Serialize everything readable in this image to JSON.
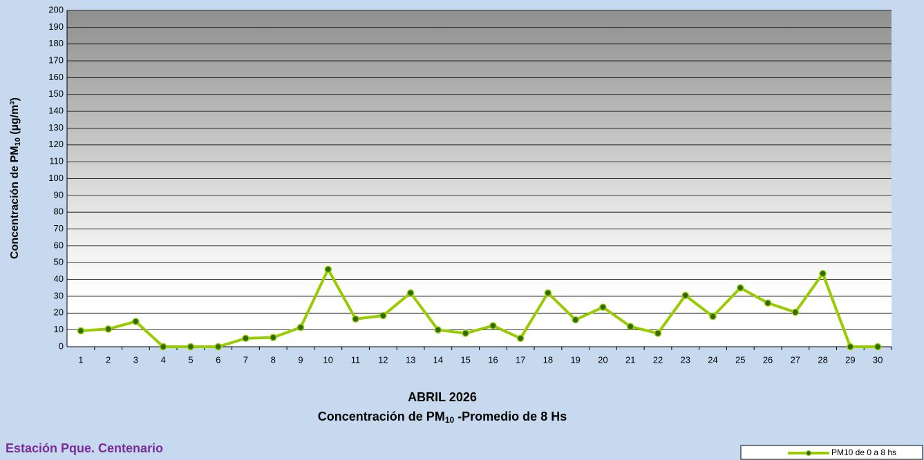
{
  "chart_data": {
    "type": "line",
    "title": "ABRIL 2026",
    "subtitle": {
      "text": "Concentración de PM",
      "sub": "10",
      "rest": " -Promedio de 8 Hs"
    },
    "y_label": {
      "text": "Concentración de PM",
      "sub": "10",
      "rest": " (µg/m³)"
    },
    "station": "Estación Pque. Centenario",
    "categories": [
      "1",
      "2",
      "3",
      "4",
      "5",
      "6",
      "7",
      "8",
      "9",
      "10",
      "11",
      "12",
      "13",
      "14",
      "15",
      "16",
      "17",
      "18",
      "19",
      "20",
      "21",
      "22",
      "23",
      "24",
      "25",
      "26",
      "27",
      "28",
      "29",
      "30"
    ],
    "series": [
      {
        "name": "PM10 de 0 a 8 hs",
        "color": "#99cc00",
        "marker_color": "#2e6b00",
        "values": [
          9.5,
          10.5,
          15,
          0,
          0,
          0,
          5,
          5.5,
          11.5,
          46,
          16.5,
          18.5,
          32,
          10,
          8,
          12.5,
          5,
          32,
          16,
          23.5,
          12,
          8,
          30.5,
          18,
          35,
          26,
          20.5,
          43.5,
          0,
          0
        ]
      }
    ],
    "ylim": [
      0,
      200
    ],
    "yticks": [
      0,
      10,
      20,
      30,
      40,
      50,
      60,
      70,
      80,
      90,
      100,
      110,
      120,
      130,
      140,
      150,
      160,
      170,
      180,
      190,
      200
    ],
    "grid": true,
    "legend": "bottom-right"
  }
}
